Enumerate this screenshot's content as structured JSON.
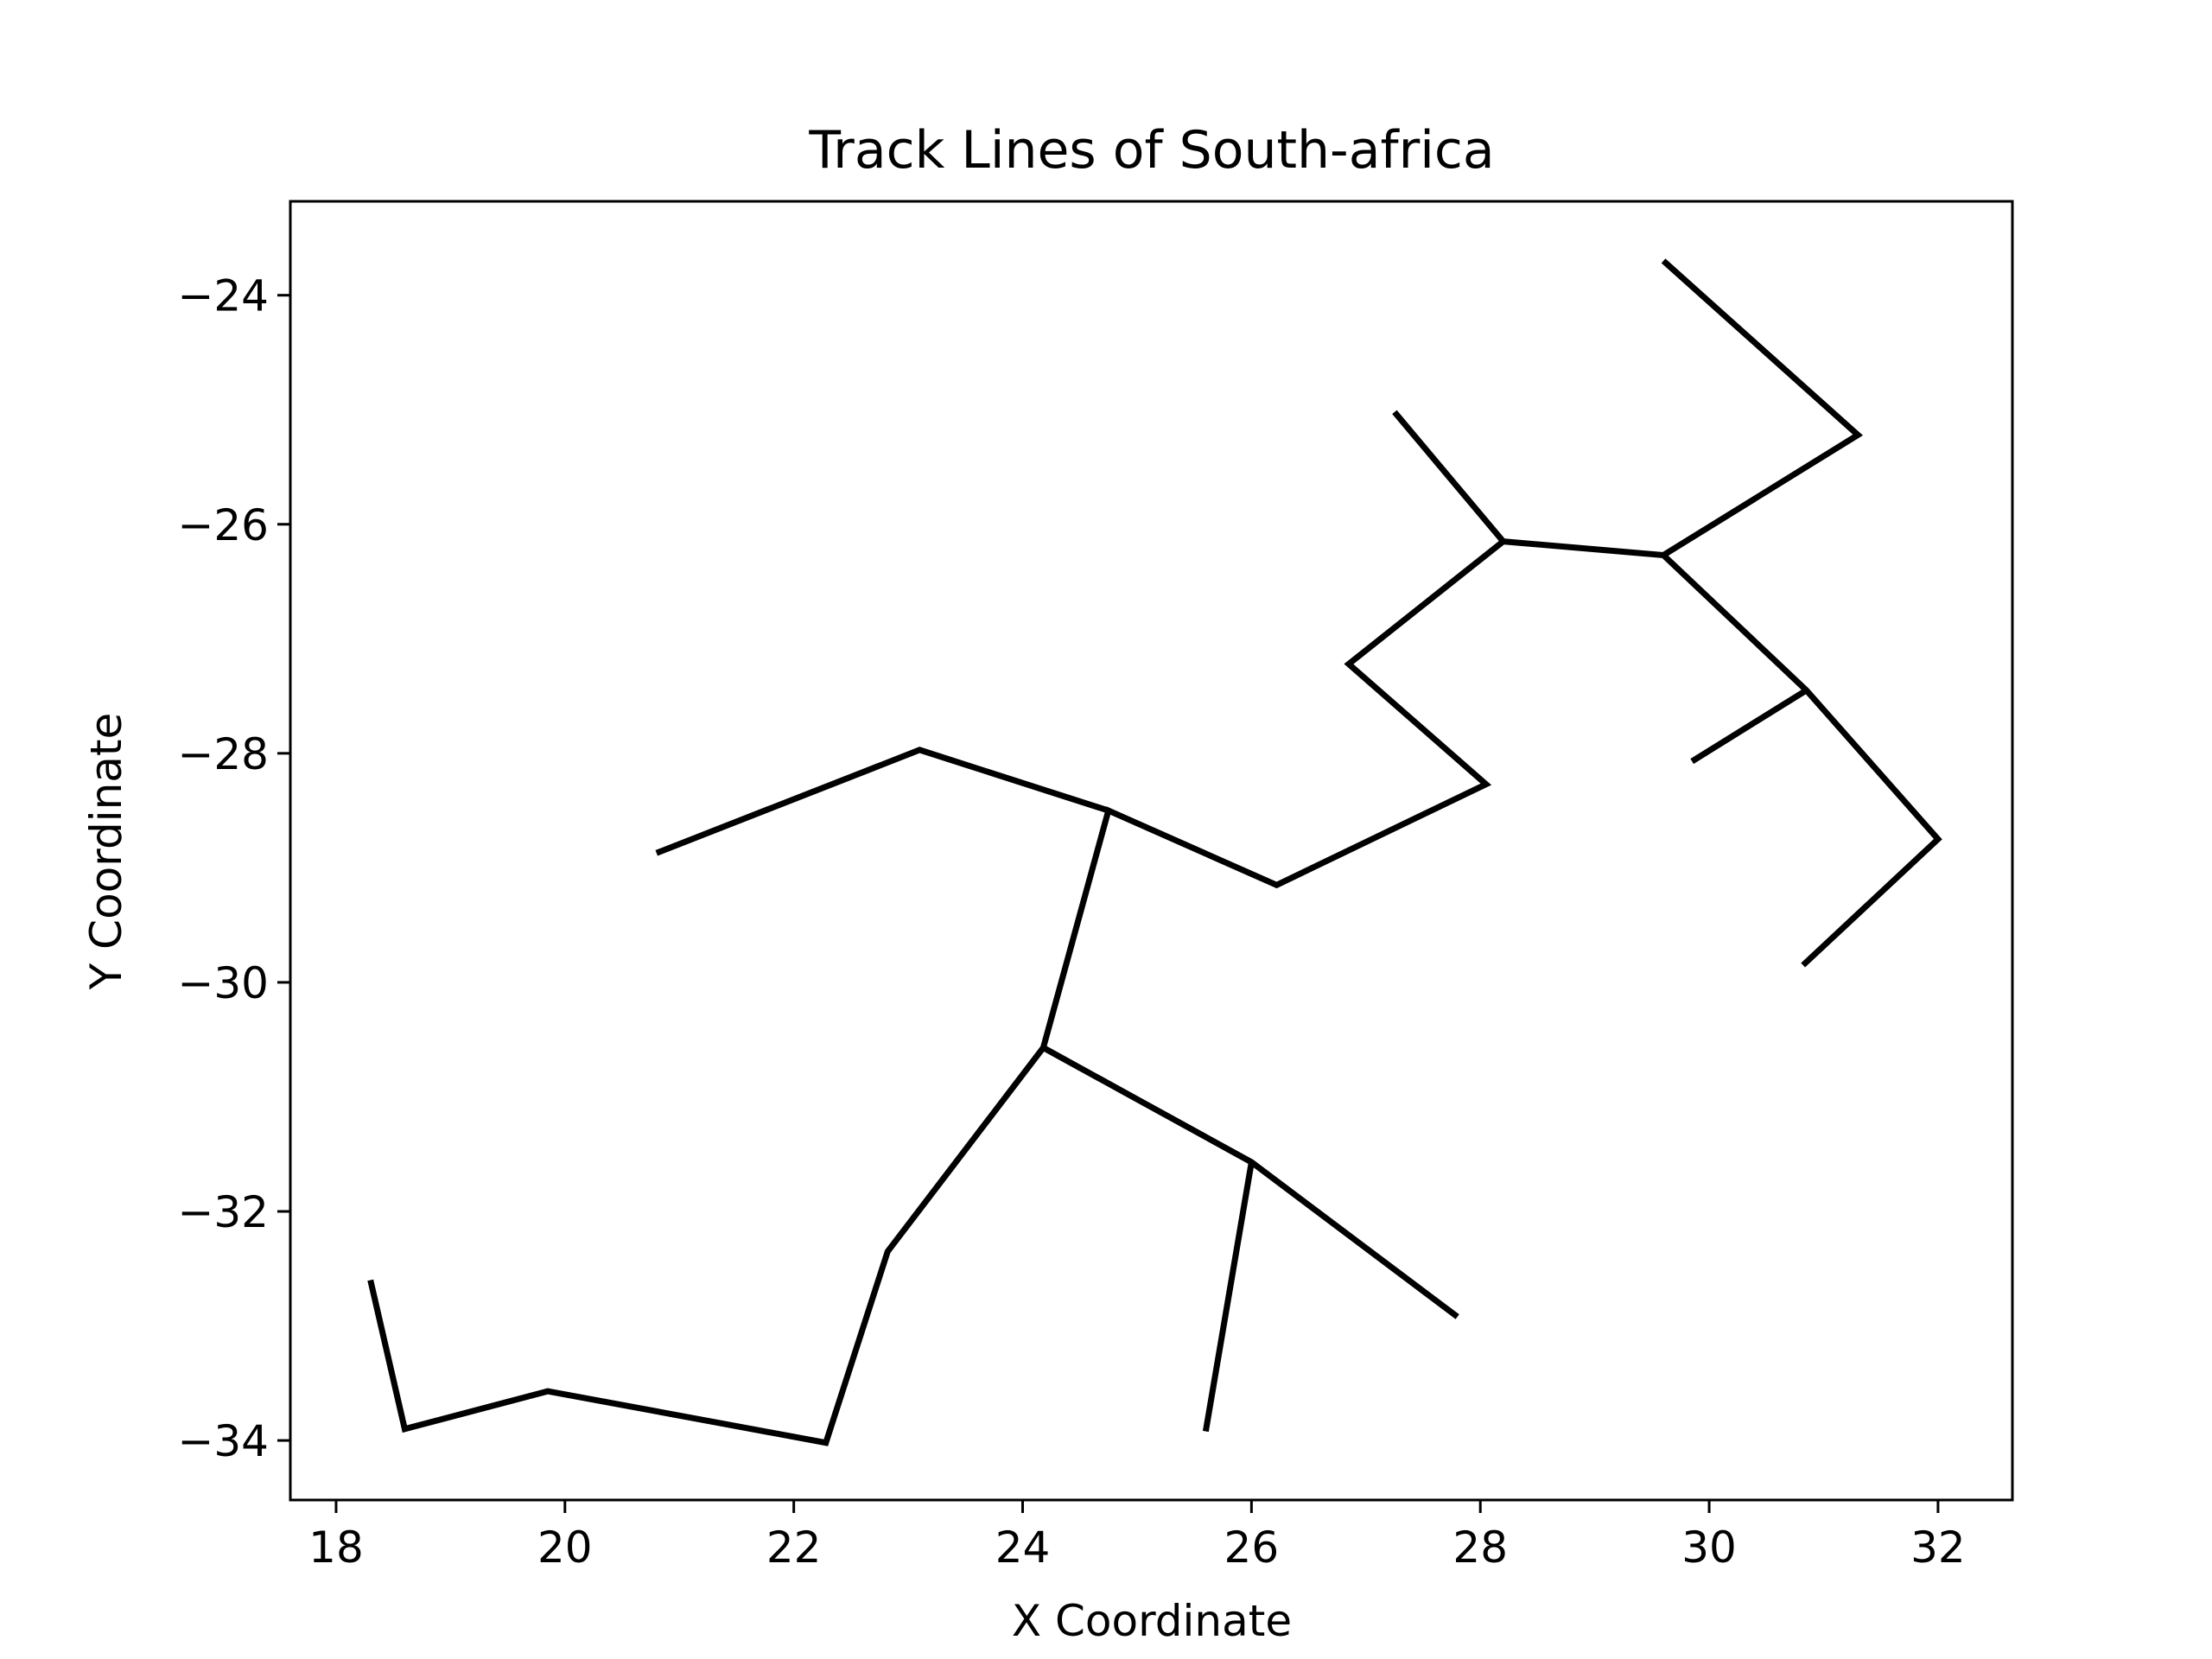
{
  "chart_data": {
    "type": "line",
    "title": "Track Lines of South-africa",
    "xlabel": "X Coordinate",
    "ylabel": "Y Coordinate",
    "xlim": [
      17.6,
      32.65
    ],
    "ylim": [
      -34.52,
      -23.18
    ],
    "xticks": [
      18,
      20,
      22,
      24,
      26,
      28,
      30,
      32
    ],
    "yticks": [
      -24,
      -26,
      -28,
      -30,
      -32,
      -34
    ],
    "xtick_labels": [
      "18",
      "20",
      "22",
      "24",
      "26",
      "28",
      "30",
      "32"
    ],
    "ytick_labels": [
      "−24",
      "−26",
      "−28",
      "−30",
      "−32",
      "−34"
    ],
    "grid": false,
    "line_color": "#000000",
    "series": [
      {
        "points": [
          [
            18.3,
            -32.6
          ],
          [
            18.6,
            -33.9
          ],
          [
            19.85,
            -33.57
          ],
          [
            22.28,
            -34.02
          ],
          [
            22.82,
            -32.35
          ],
          [
            24.18,
            -30.57
          ],
          [
            24.75,
            -28.5
          ],
          [
            26.22,
            -29.15
          ],
          [
            28.05,
            -28.27
          ],
          [
            26.85,
            -27.22
          ],
          [
            28.2,
            -26.15
          ],
          [
            29.6,
            -26.27
          ],
          [
            30.85,
            -27.45
          ],
          [
            32.0,
            -28.75
          ],
          [
            30.82,
            -29.85
          ]
        ]
      },
      {
        "points": [
          [
            20.8,
            -28.87
          ],
          [
            23.1,
            -27.97
          ],
          [
            24.75,
            -28.5
          ]
        ]
      },
      {
        "points": [
          [
            24.18,
            -30.57
          ],
          [
            26.0,
            -31.57
          ],
          [
            27.8,
            -32.92
          ]
        ]
      },
      {
        "points": [
          [
            26.0,
            -31.57
          ],
          [
            25.6,
            -33.92
          ]
        ]
      },
      {
        "points": [
          [
            27.25,
            -25.02
          ],
          [
            28.2,
            -26.15
          ]
        ]
      },
      {
        "points": [
          [
            29.6,
            -23.7
          ],
          [
            31.3,
            -25.22
          ],
          [
            29.6,
            -26.27
          ]
        ]
      },
      {
        "points": [
          [
            29.85,
            -28.07
          ],
          [
            30.85,
            -27.45
          ]
        ]
      }
    ]
  }
}
